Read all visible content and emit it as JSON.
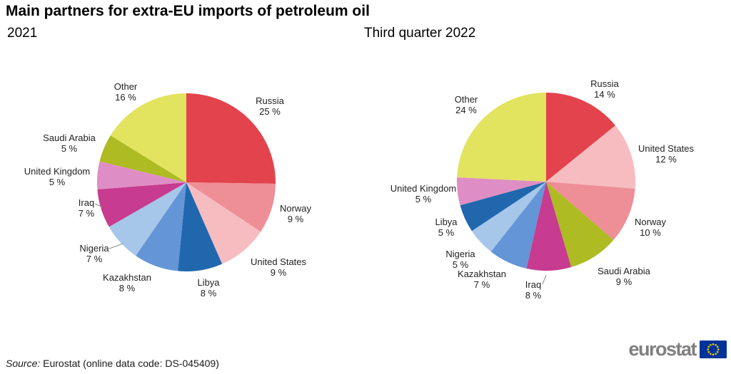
{
  "title": "Main partners for extra-EU imports of petroleum oil",
  "source": {
    "prefix": "Source:",
    "text": "Eurostat (online data code: DS-045409)"
  },
  "logo": {
    "text": "eurostat",
    "flag_color": "#003399",
    "star_color": "#ffcc00"
  },
  "chart_data": [
    {
      "type": "pie",
      "title": "2021",
      "categories": [
        "Russia",
        "Norway",
        "United States",
        "Libya",
        "Kazakhstan",
        "Nigeria",
        "Iraq",
        "United Kingdom",
        "Saudi Arabia",
        "Other"
      ],
      "values": [
        25,
        9,
        9,
        8,
        8,
        7,
        7,
        5,
        5,
        16
      ],
      "unit": "%",
      "label_format": "{value} %",
      "colors": [
        "#e3434c",
        "#ee8e96",
        "#f6bcbf",
        "#2067ae",
        "#6495d6",
        "#a6c6ea",
        "#c73b90",
        "#df8ec5",
        "#aebb22",
        "#e2e35f"
      ],
      "start_angle_deg": 0,
      "direction": "clockwise",
      "legend": "none",
      "labels_outside": true
    },
    {
      "type": "pie",
      "title": "Third quarter 2022",
      "categories": [
        "Russia",
        "United States",
        "Norway",
        "Saudi Arabia",
        "Iraq",
        "Kazakhstan",
        "Nigeria",
        "Libya",
        "United Kingdom",
        "Other"
      ],
      "values": [
        14,
        12,
        10,
        9,
        8,
        7,
        5,
        5,
        5,
        24
      ],
      "unit": "%",
      "label_format": "{value} %",
      "colors": [
        "#e3434c",
        "#f6bcbf",
        "#ee8e96",
        "#aebb22",
        "#c73b90",
        "#6495d6",
        "#a6c6ea",
        "#2067ae",
        "#df8ec5",
        "#e2e35f"
      ],
      "start_angle_deg": 0,
      "direction": "clockwise",
      "legend": "none",
      "labels_outside": true
    }
  ]
}
